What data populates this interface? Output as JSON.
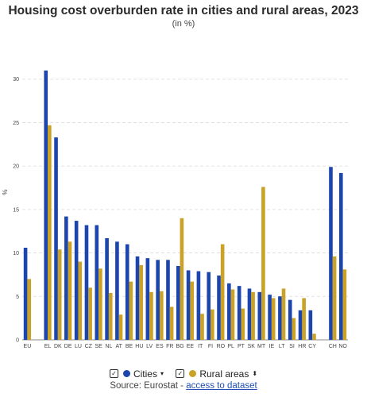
{
  "header": {
    "title": "Housing cost overburden rate in cities and rural areas, 2023",
    "subtitle": "(in %)"
  },
  "legend": {
    "check": "✓",
    "cities_label": "Cities",
    "cities_caret": "▾",
    "rural_label": "Rural areas",
    "rural_caret": "⬍"
  },
  "source": {
    "prefix": "Source: Eurostat - ",
    "link": "access to dataset"
  },
  "colors": {
    "cities": "#1c45ad",
    "rural": "#c9a227",
    "grid": "#d9d9d9",
    "axis": "#888888"
  },
  "chart_data": {
    "type": "bar",
    "title": "Housing cost overburden rate in cities and rural areas, 2023",
    "subtitle": "(in %)",
    "ylabel": "%",
    "ylim": [
      0,
      35
    ],
    "yticks": [
      0,
      5,
      10,
      15,
      20,
      25,
      30
    ],
    "grid": true,
    "categories": [
      "EU",
      "EL",
      "DK",
      "DE",
      "LU",
      "CZ",
      "SE",
      "NL",
      "AT",
      "BE",
      "HU",
      "LV",
      "ES",
      "FR",
      "BG",
      "EE",
      "IT",
      "FI",
      "RO",
      "PL",
      "PT",
      "SK",
      "MT",
      "IE",
      "LT",
      "SI",
      "HR",
      "CY",
      "CH",
      "NO"
    ],
    "gap_after": [
      "EU",
      "CY"
    ],
    "series": [
      {
        "name": "Cities",
        "values": [
          10.6,
          31.0,
          23.3,
          14.2,
          13.7,
          13.2,
          13.2,
          11.7,
          11.3,
          11.0,
          9.6,
          9.4,
          9.2,
          9.2,
          8.5,
          8.0,
          7.9,
          7.8,
          7.4,
          6.5,
          6.2,
          5.9,
          5.5,
          5.2,
          5.0,
          4.6,
          3.4,
          3.4,
          19.9,
          19.2
        ]
      },
      {
        "name": "Rural areas",
        "values": [
          7.0,
          24.7,
          10.4,
          11.3,
          9.0,
          6.0,
          8.2,
          5.4,
          2.9,
          6.7,
          8.6,
          5.5,
          5.6,
          3.8,
          14.0,
          6.7,
          3.0,
          3.5,
          11.0,
          5.8,
          3.6,
          5.5,
          17.6,
          4.8,
          5.9,
          2.5,
          4.8,
          0.7,
          9.6,
          8.1
        ]
      }
    ]
  }
}
